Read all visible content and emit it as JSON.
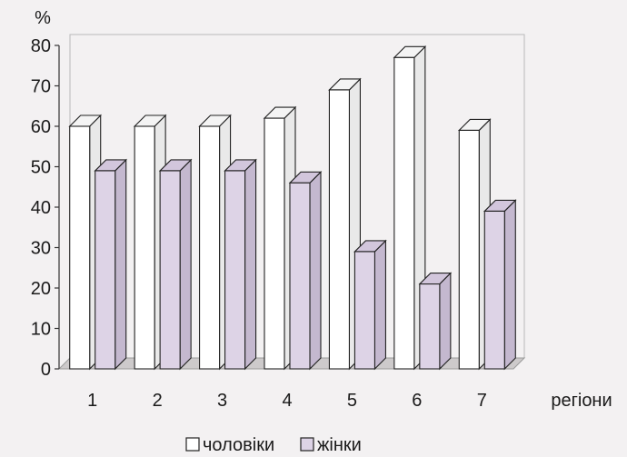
{
  "chart_data": {
    "type": "bar",
    "ylabel": "%",
    "xlabel": "регіони",
    "categories": [
      "1",
      "2",
      "3",
      "4",
      "5",
      "6",
      "7"
    ],
    "yticks": [
      0,
      10,
      20,
      30,
      40,
      50,
      60,
      70,
      80
    ],
    "ylim": [
      0,
      80
    ],
    "grid": false,
    "legend_position": "bottom",
    "series": [
      {
        "name": "чоловіки",
        "values": [
          60,
          60,
          60,
          62,
          69,
          77,
          59
        ],
        "color": "#ffffff"
      },
      {
        "name": "жінки",
        "values": [
          49,
          49,
          49,
          46,
          29,
          21,
          39
        ],
        "color": "#ddd3e6"
      }
    ]
  }
}
